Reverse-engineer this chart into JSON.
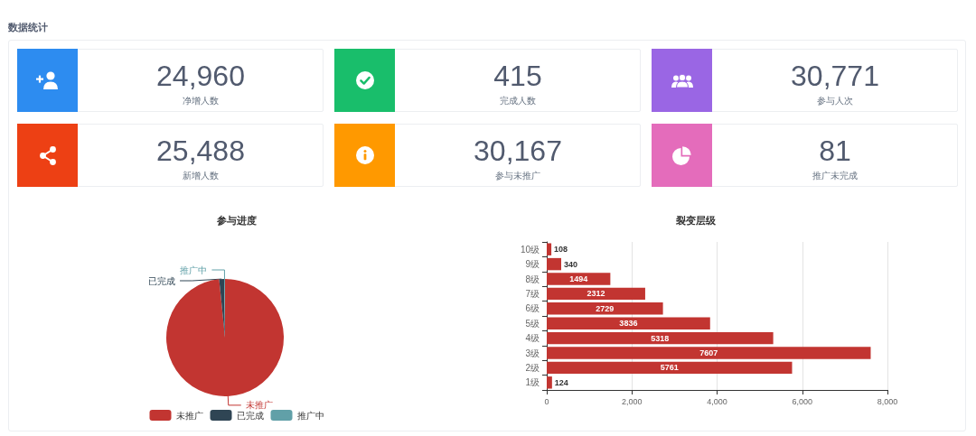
{
  "chart_data": [
    {
      "type": "other",
      "title": "数据统计",
      "categories": [
        "净增人数",
        "完成人数",
        "参与人次",
        "新增人数",
        "参与未推广",
        "推广未完成"
      ],
      "values": [
        24960,
        415,
        30771,
        25488,
        30167,
        81
      ],
      "value_labels": [
        "24,960",
        "415",
        "30,771",
        "25,488",
        "30,167",
        "81"
      ],
      "colors": [
        "#2d8cf0",
        "#19be6b",
        "#9a66e4",
        "#ed4014",
        "#ff9900",
        "#e46cbb"
      ]
    },
    {
      "type": "pie",
      "title": "参与进度",
      "categories": [
        "未推广",
        "已完成",
        "推广中"
      ],
      "values": [
        98.4,
        1.35,
        0.25
      ],
      "colors": [
        "#c23531",
        "#2f4554",
        "#61a0a8"
      ],
      "legend": "bottom"
    },
    {
      "type": "bar",
      "orientation": "horizontal",
      "title": "裂变层级",
      "categories": [
        "10级",
        "9级",
        "8级",
        "7级",
        "6级",
        "5级",
        "4级",
        "3级",
        "2级",
        "1级"
      ],
      "values": [
        108,
        340,
        1494,
        2312,
        2729,
        3836,
        5318,
        7607,
        5761,
        124
      ],
      "color": "#c23531",
      "xlim": [
        0,
        8000
      ],
      "xticks": [
        0,
        {
          "value": 2000,
          "label": "2,000"
        },
        {
          "value": 4000,
          "label": "4,000"
        },
        {
          "value": 6000,
          "label": "6,000"
        },
        {
          "value": 8000,
          "label": "8,000"
        }
      ],
      "grid": "x",
      "data_labels": true
    }
  ]
}
